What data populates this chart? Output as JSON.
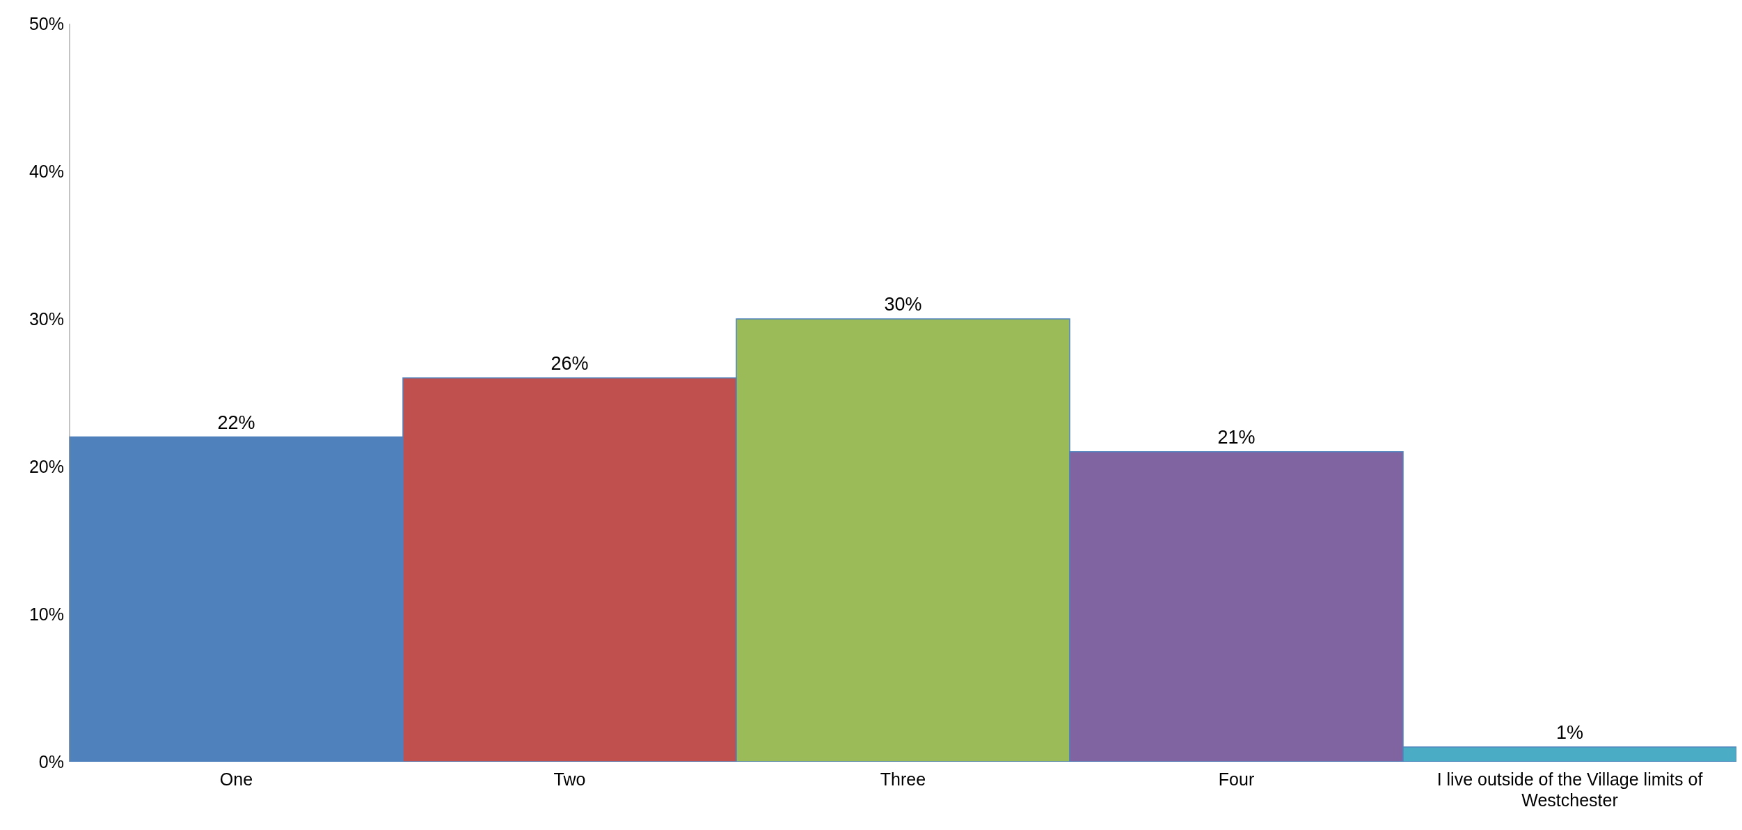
{
  "chart_data": {
    "type": "bar",
    "categories": [
      "One",
      "Two",
      "Three",
      "Four",
      "I live outside of the Village limits of Westchester"
    ],
    "values": [
      22,
      26,
      30,
      21,
      1
    ],
    "colors": [
      "#4f81bd",
      "#c0504d",
      "#9bbb59",
      "#8064a2",
      "#4bacc6"
    ],
    "value_labels": [
      "22%",
      "26%",
      "30%",
      "21%",
      "1%"
    ],
    "ylim": [
      0,
      50
    ],
    "yticks": [
      {
        "value": 0,
        "label": "0%"
      },
      {
        "value": 10,
        "label": "10%"
      },
      {
        "value": 20,
        "label": "20%"
      },
      {
        "value": 30,
        "label": "30%"
      },
      {
        "value": 40,
        "label": "40%"
      },
      {
        "value": 50,
        "label": "50%"
      }
    ],
    "grid": false,
    "legend": false
  }
}
